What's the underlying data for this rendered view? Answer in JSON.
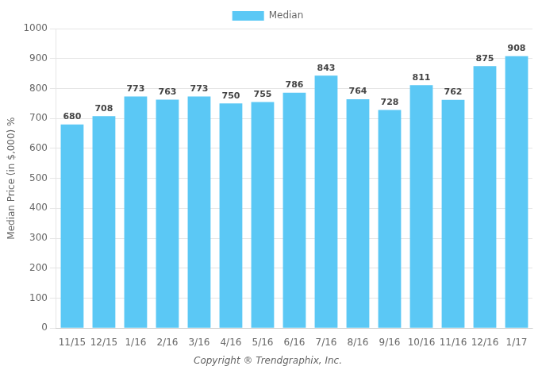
{
  "chart_data": {
    "type": "bar",
    "categories": [
      "11/15",
      "12/15",
      "1/16",
      "2/16",
      "3/16",
      "4/16",
      "5/16",
      "6/16",
      "7/16",
      "8/16",
      "9/16",
      "10/16",
      "11/16",
      "12/16",
      "1/17"
    ],
    "series": [
      {
        "name": "Median",
        "color": "#5BC8F5",
        "values": [
          680,
          708,
          773,
          763,
          773,
          750,
          755,
          786,
          843,
          764,
          728,
          811,
          762,
          875,
          908
        ]
      }
    ],
    "ylabel": "Median Price (in $,000) %",
    "annotations": [
      "Copyright ® Trendgraphix, Inc."
    ],
    "ylim": [
      0,
      1000
    ],
    "yticks": [
      0,
      100,
      200,
      300,
      400,
      500,
      600,
      700,
      800,
      900,
      1000
    ],
    "grid": true,
    "legend": "top",
    "data_labels": true
  }
}
